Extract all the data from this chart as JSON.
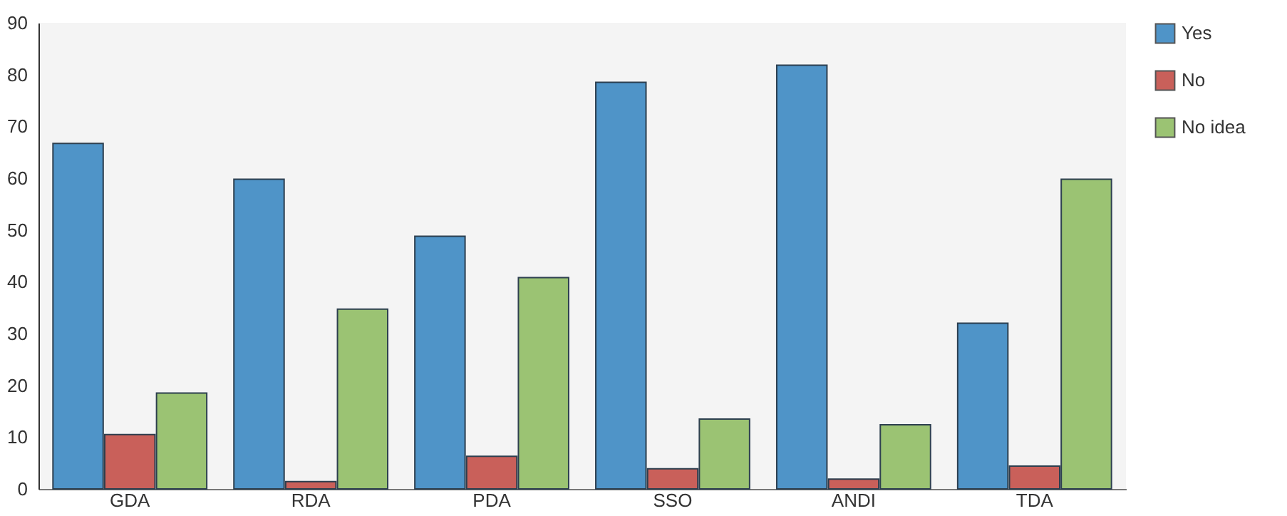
{
  "chart_data": {
    "type": "bar",
    "categories": [
      "GDA",
      "RDA",
      "PDA",
      "SSO",
      "ANDI",
      "TDA"
    ],
    "series": [
      {
        "name": "Yes",
        "color": "#4f94c8",
        "values": [
          66.7,
          59.8,
          48.8,
          78.5,
          81.8,
          32
        ]
      },
      {
        "name": "No",
        "color": "#c9605a",
        "values": [
          10.5,
          1.4,
          6.3,
          3.9,
          1.9,
          4.4
        ]
      },
      {
        "name": "No idea",
        "color": "#9bc373",
        "values": [
          18.5,
          34.7,
          40.8,
          13.5,
          12.4,
          59.8
        ]
      }
    ],
    "ylim": [
      0,
      90
    ],
    "yticks": [
      0,
      10,
      20,
      30,
      40,
      50,
      60,
      70,
      80,
      90
    ],
    "grid": false,
    "legend": "top right"
  }
}
